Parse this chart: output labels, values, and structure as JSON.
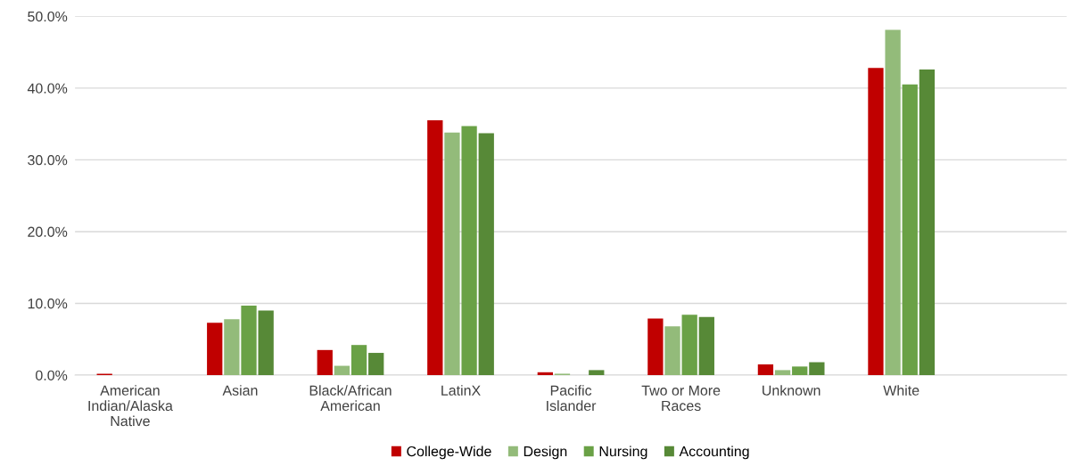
{
  "chart_data": {
    "type": "bar",
    "categories": [
      "American\nIndian/Alaska\nNative",
      "Asian",
      "Black/African\nAmerican",
      "LatinX",
      "Pacific\nIslander",
      "Two or More\nRaces",
      "Unknown",
      "White",
      null
    ],
    "series": [
      {
        "name": "College-Wide",
        "color": "#c00000",
        "values": [
          0.2,
          7.3,
          3.5,
          35.5,
          0.4,
          7.9,
          1.5,
          42.8,
          null
        ]
      },
      {
        "name": "Design",
        "color": "#93bb7a",
        "values": [
          0,
          7.8,
          1.3,
          33.8,
          0.2,
          6.8,
          0.7,
          48.1,
          null
        ]
      },
      {
        "name": "Nursing",
        "color": "#6aa146",
        "values": [
          0,
          9.7,
          4.2,
          34.7,
          0,
          8.4,
          1.2,
          40.5,
          null
        ]
      },
      {
        "name": "Accounting",
        "color": "#578937",
        "values": [
          0,
          9.0,
          3.1,
          33.7,
          0.7,
          8.1,
          1.8,
          42.6,
          null
        ]
      }
    ],
    "ylim": [
      0,
      50
    ],
    "yticks": [
      {
        "value": 0,
        "label": "0.0%"
      },
      {
        "value": 10,
        "label": "10.0%"
      },
      {
        "value": 20,
        "label": "20.0%"
      },
      {
        "value": 30,
        "label": "30.0%"
      },
      {
        "value": 40,
        "label": "40.0%"
      },
      {
        "value": 50,
        "label": "50.0%"
      }
    ],
    "grid": "y",
    "legend": "bottom"
  }
}
